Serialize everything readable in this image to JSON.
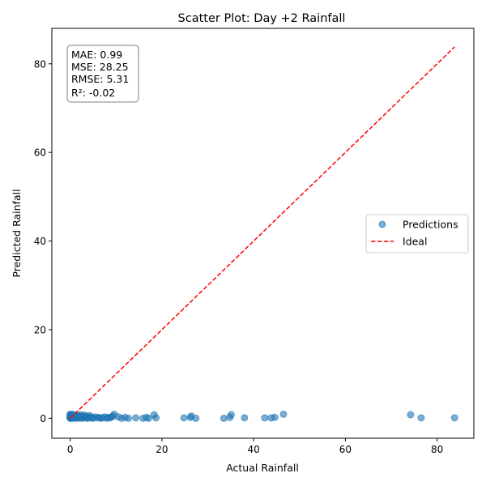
{
  "chart_data": {
    "type": "scatter",
    "title": "Scatter Plot: Day +2 Rainfall",
    "xlabel": "Actual Rainfall",
    "ylabel": "Predicted Rainfall",
    "xlim": [
      -4,
      88
    ],
    "ylim": [
      -4.5,
      88
    ],
    "x_ticks": [
      0,
      20,
      40,
      60,
      80
    ],
    "y_ticks": [
      0,
      20,
      40,
      60,
      80
    ],
    "grid": false,
    "legend": {
      "placement": "center-right",
      "entries": [
        {
          "label": "Predictions",
          "kind": "marker",
          "color": "#1f77b4"
        },
        {
          "label": "Ideal",
          "kind": "dashed-line",
          "color": "#ff0000"
        }
      ]
    },
    "metrics_box": {
      "lines": [
        "MAE: 0.99",
        "MSE: 28.25",
        "RMSE: 5.31",
        "R²: -0.02"
      ],
      "placement": "top-left"
    },
    "series": [
      {
        "name": "Predictions",
        "color": "#1f77b4",
        "alpha": 0.6,
        "x": [
          0,
          0,
          0,
          0,
          0,
          0,
          0,
          0.1,
          0.1,
          0.2,
          0.2,
          0.3,
          0.3,
          0.4,
          0.5,
          0.5,
          0.6,
          0.7,
          0.8,
          0.9,
          1.0,
          1.1,
          1.2,
          1.3,
          1.5,
          1.6,
          1.8,
          1.9,
          2.0,
          2.2,
          2.3,
          2.5,
          2.6,
          2.8,
          3.0,
          3.2,
          3.4,
          3.6,
          3.8,
          4.0,
          4.3,
          4.5,
          4.8,
          5.0,
          5.5,
          6.0,
          6.3,
          6.7,
          7.0,
          7.5,
          8.0,
          8.3,
          8.7,
          9.0,
          9.3,
          9.6,
          10.5,
          11.2,
          12.0,
          12.7,
          14.3,
          15.9,
          16.6,
          17.1,
          18.3,
          18.7,
          24.8,
          26.2,
          26.4,
          27.4,
          33.5,
          34.8,
          35.1,
          38.0,
          42.4,
          43.8,
          44.6,
          46.5,
          74.2,
          76.5,
          83.8
        ],
        "y": [
          0.0,
          0.3,
          0.6,
          0.9,
          0.2,
          0.5,
          0.1,
          0.4,
          0.8,
          0.0,
          0.5,
          0.2,
          0.7,
          0.1,
          0.4,
          0.9,
          0.2,
          0.6,
          0.0,
          0.4,
          0.2,
          0.7,
          0.1,
          0.5,
          0.3,
          0.0,
          0.6,
          0.2,
          0.4,
          0.1,
          0.8,
          0.3,
          0.0,
          0.5,
          0.2,
          0.7,
          0.1,
          0.4,
          0.0,
          0.3,
          0.6,
          0.1,
          0.2,
          0.0,
          0.3,
          0.1,
          0.2,
          0.0,
          0.1,
          0.3,
          0.0,
          0.2,
          0.1,
          0.3,
          0.5,
          0.9,
          0.3,
          0.0,
          0.2,
          0.0,
          0.1,
          0.0,
          0.2,
          0.0,
          0.8,
          0.1,
          0.1,
          0.2,
          0.5,
          0.0,
          0.0,
          0.2,
          0.8,
          0.1,
          0.1,
          0.1,
          0.2,
          0.9,
          0.8,
          0.1,
          0.1
        ]
      },
      {
        "name": "Ideal",
        "color": "#ff0000",
        "style": "dashed",
        "x": [
          0,
          83.8
        ],
        "y": [
          0,
          83.8
        ]
      }
    ]
  }
}
